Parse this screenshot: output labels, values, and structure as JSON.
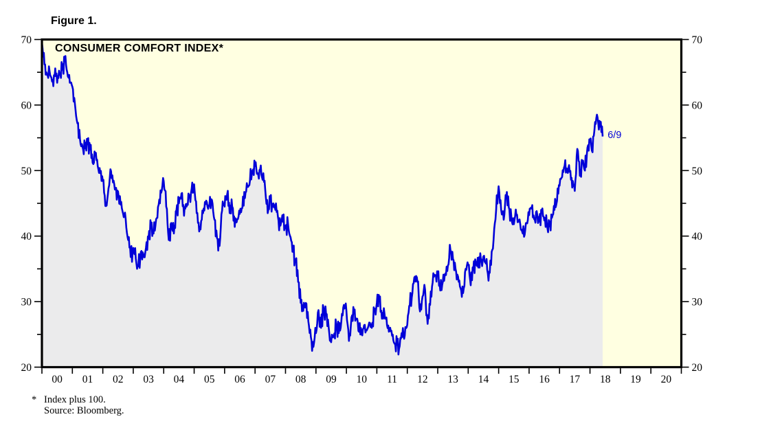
{
  "figure": {
    "label": "Figure 1."
  },
  "chart_data": {
    "type": "area",
    "title": "CONSUMER COMFORT INDEX*",
    "legend": "none",
    "grid": false,
    "series": [
      {
        "name": "Consumer Comfort Index (index plus 100)",
        "start_year": 2000,
        "frequency": "monthly",
        "values": [
          69.5,
          66.2,
          64.6,
          65.2,
          63.6,
          64.4,
          63.4,
          64.6,
          65.4,
          66.8,
          65.0,
          63.4,
          62.8,
          60.2,
          57.2,
          54.8,
          53.6,
          53.4,
          54.0,
          53.2,
          51.2,
          52.4,
          50.7,
          49.6,
          48.4,
          44.6,
          46.4,
          50.2,
          48.2,
          47.2,
          46.8,
          44.8,
          43.4,
          42.6,
          39.4,
          36.8,
          38.2,
          36.6,
          35.4,
          37.6,
          36.8,
          38.2,
          39.6,
          41.5,
          40.4,
          42.6,
          44.8,
          46.6,
          48.4,
          44.5,
          39.4,
          42.0,
          40.4,
          43.9,
          45.0,
          46.5,
          43.1,
          44.5,
          46.0,
          47.2,
          47.9,
          43.5,
          40.7,
          42.5,
          43.9,
          45.2,
          44.6,
          45.5,
          42.5,
          39.7,
          38.5,
          43.9,
          44.5,
          46.3,
          43.5,
          44.5,
          41.4,
          42.6,
          43.4,
          44.3,
          45.8,
          47.5,
          48.5,
          50.0,
          50.7,
          49.6,
          50.2,
          48.6,
          47.2,
          43.5,
          45.8,
          44.5,
          44.0,
          43.0,
          41.6,
          42.2,
          41.2,
          41.8,
          39.8,
          37.6,
          36.3,
          33.0,
          29.8,
          28.6,
          29.8,
          27.0,
          24.6,
          23.1,
          25.2,
          28.7,
          26.0,
          29.0,
          28.0,
          26.2,
          23.8,
          24.8,
          26.6,
          25.2,
          27.0,
          29.5,
          28.6,
          24.0,
          27.6,
          28.2,
          27.4,
          25.4,
          25.0,
          26.4,
          25.6,
          26.8,
          26.0,
          28.8,
          29.8,
          30.2,
          27.4,
          28.2,
          26.4,
          25.6,
          24.8,
          23.6,
          23.4,
          23.2,
          24.6,
          24.8,
          26.5,
          29.5,
          31.3,
          33.8,
          33.0,
          28.5,
          30.8,
          31.8,
          26.6,
          29.5,
          32.9,
          34.0,
          34.2,
          31.7,
          33.0,
          34.3,
          35.5,
          37.9,
          36.5,
          35.0,
          33.8,
          32.0,
          31.3,
          35.0,
          35.6,
          32.5,
          34.8,
          36.0,
          35.2,
          36.5,
          36.9,
          35.8,
          33.2,
          35.6,
          39.5,
          44.0,
          47.6,
          44.0,
          42.5,
          45.9,
          44.4,
          43.0,
          41.8,
          43.2,
          42.2,
          41.0,
          39.9,
          42.0,
          43.2,
          44.2,
          42.6,
          43.8,
          42.2,
          43.6,
          42.4,
          41.8,
          41.5,
          42.8,
          44.0,
          45.4,
          47.7,
          49.0,
          50.7,
          50.2,
          49.8,
          47.4,
          46.9,
          53.3,
          49.2,
          51.2,
          50.0,
          53.5,
          54.7,
          52.8,
          57.4,
          58.1,
          56.7,
          55.2
        ]
      }
    ],
    "annotation": {
      "text": "6/9",
      "year_frac": 2018.58,
      "value": 55.5
    },
    "x_axis": {
      "range_years": [
        2000,
        2021
      ],
      "tick_every_years": 1,
      "labels": [
        "00",
        "01",
        "02",
        "03",
        "04",
        "05",
        "06",
        "07",
        "08",
        "09",
        "10",
        "11",
        "12",
        "13",
        "14",
        "15",
        "16",
        "17",
        "18",
        "19",
        "20"
      ]
    },
    "y_axis": {
      "range": [
        20,
        70
      ],
      "major_tick_step": 10,
      "minor_tick_step": 5,
      "major_tick_values": [
        70,
        60,
        50,
        40,
        30,
        20
      ],
      "sides": "both"
    },
    "colors": {
      "line": "#0000d8",
      "area_fill": "#ebebec",
      "plot_background": "#ffffe1",
      "border": "#000000",
      "text": "#000000"
    },
    "style": {
      "weekly_jitter_amplitude": 1.0,
      "jitter_seed": 20180609
    }
  },
  "footnotes": {
    "marker": "*",
    "note": "Index plus 100.",
    "source": "Source: Bloomberg."
  }
}
